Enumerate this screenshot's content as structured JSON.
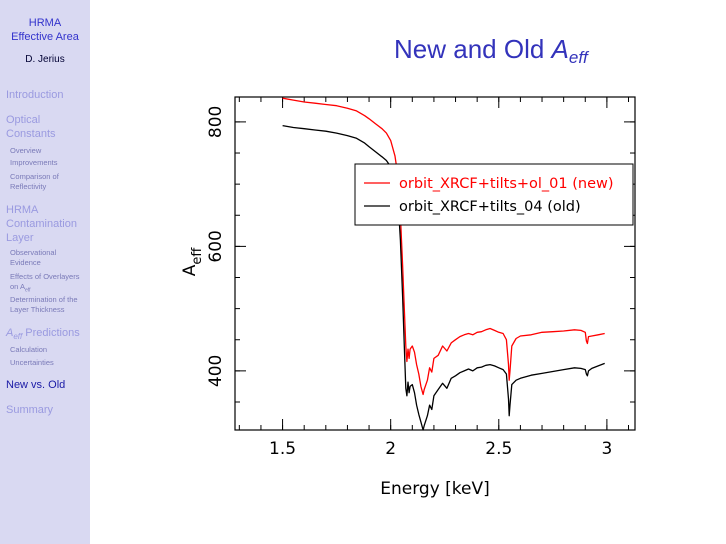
{
  "sidebar": {
    "title_line1": "HRMA",
    "title_line2": "Effective Area",
    "author": "D. Jerius",
    "sections": [
      {
        "label": "Introduction"
      },
      {
        "label_lines": [
          "Optical",
          "Constants"
        ],
        "items": [
          [
            "Overview"
          ],
          [
            "Improvements"
          ],
          [
            "Comparison of",
            "Reflectivity"
          ]
        ]
      },
      {
        "label_lines": [
          "HRMA",
          "Contamination",
          "Layer"
        ],
        "items": [
          [
            "Observational",
            "Evidence"
          ],
          [
            "Effects of Overlayers",
            "on A",
            "eff"
          ],
          [
            "Determination of the",
            "Layer Thickness"
          ]
        ]
      },
      {
        "label_a": "A",
        "label_sub": "eff",
        "label_rest": " Predictions",
        "items": [
          [
            "Calculation"
          ],
          [
            "Uncertainties"
          ]
        ]
      },
      {
        "label": "New vs. Old"
      },
      {
        "label": "Summary"
      }
    ]
  },
  "slide": {
    "title_main": "New and Old ",
    "title_a": "A",
    "title_sub": "eff"
  },
  "chart_data": {
    "type": "line",
    "title": "",
    "xlabel": "Energy [keV]",
    "ylabel_main": "A",
    "ylabel_sub": "eff",
    "xlim": [
      1.28,
      3.13
    ],
    "ylim": [
      305,
      840
    ],
    "xticks": [
      1.5,
      2,
      2.5,
      3
    ],
    "xtick_labels": [
      "1.5",
      "2",
      "2.5",
      "3"
    ],
    "yticks": [
      400,
      600,
      800
    ],
    "ytick_labels": [
      "400",
      "600",
      "800"
    ],
    "legend": {
      "placement": "top-right"
    },
    "series": [
      {
        "name": "orbit_XRCF+tilts+ol_01 (new)",
        "color": "#ff0000",
        "points": [
          [
            1.5,
            838
          ],
          [
            1.55,
            835
          ],
          [
            1.6,
            832
          ],
          [
            1.65,
            830
          ],
          [
            1.7,
            828
          ],
          [
            1.75,
            826
          ],
          [
            1.8,
            822
          ],
          [
            1.84,
            818
          ],
          [
            1.88,
            810
          ],
          [
            1.9,
            805
          ],
          [
            1.93,
            797
          ],
          [
            1.96,
            789
          ],
          [
            1.98,
            782
          ],
          [
            2.0,
            770
          ],
          [
            2.02,
            745
          ],
          [
            2.035,
            710
          ],
          [
            2.045,
            650
          ],
          [
            2.055,
            570
          ],
          [
            2.063,
            500
          ],
          [
            2.07,
            440
          ],
          [
            2.075,
            415
          ],
          [
            2.08,
            435
          ],
          [
            2.085,
            420
          ],
          [
            2.09,
            435
          ],
          [
            2.1,
            440
          ],
          [
            2.11,
            430
          ],
          [
            2.12,
            410
          ],
          [
            2.13,
            395
          ],
          [
            2.14,
            375
          ],
          [
            2.15,
            362
          ],
          [
            2.155,
            370
          ],
          [
            2.17,
            385
          ],
          [
            2.18,
            405
          ],
          [
            2.19,
            398
          ],
          [
            2.2,
            420
          ],
          [
            2.22,
            425
          ],
          [
            2.24,
            440
          ],
          [
            2.26,
            432
          ],
          [
            2.28,
            445
          ],
          [
            2.3,
            450
          ],
          [
            2.32,
            455
          ],
          [
            2.34,
            458
          ],
          [
            2.36,
            460
          ],
          [
            2.38,
            458
          ],
          [
            2.4,
            462
          ],
          [
            2.42,
            463
          ],
          [
            2.44,
            466
          ],
          [
            2.46,
            468
          ],
          [
            2.48,
            465
          ],
          [
            2.5,
            462
          ],
          [
            2.52,
            460
          ],
          [
            2.535,
            450
          ],
          [
            2.545,
            410
          ],
          [
            2.548,
            385
          ],
          [
            2.552,
            400
          ],
          [
            2.56,
            440
          ],
          [
            2.58,
            452
          ],
          [
            2.6,
            456
          ],
          [
            2.65,
            458
          ],
          [
            2.7,
            462
          ],
          [
            2.75,
            463
          ],
          [
            2.8,
            464
          ],
          [
            2.85,
            466
          ],
          [
            2.88,
            465
          ],
          [
            2.9,
            462
          ],
          [
            2.905,
            448
          ],
          [
            2.91,
            444
          ],
          [
            2.915,
            455
          ],
          [
            2.93,
            456
          ],
          [
            2.96,
            458
          ],
          [
            2.99,
            460
          ]
        ]
      },
      {
        "name": "orbit_XRCF+tilts_04 (old)",
        "color": "#000000",
        "points": [
          [
            1.5,
            794
          ],
          [
            1.55,
            791
          ],
          [
            1.6,
            789
          ],
          [
            1.65,
            787
          ],
          [
            1.7,
            785
          ],
          [
            1.75,
            782
          ],
          [
            1.8,
            778
          ],
          [
            1.84,
            774
          ],
          [
            1.88,
            766
          ],
          [
            1.9,
            760
          ],
          [
            1.93,
            752
          ],
          [
            1.96,
            744
          ],
          [
            1.98,
            738
          ],
          [
            2.0,
            728
          ],
          [
            2.02,
            705
          ],
          [
            2.035,
            670
          ],
          [
            2.045,
            610
          ],
          [
            2.055,
            520
          ],
          [
            2.063,
            440
          ],
          [
            2.07,
            372
          ],
          [
            2.075,
            360
          ],
          [
            2.08,
            382
          ],
          [
            2.085,
            365
          ],
          [
            2.09,
            375
          ],
          [
            2.1,
            378
          ],
          [
            2.11,
            365
          ],
          [
            2.12,
            345
          ],
          [
            2.13,
            330
          ],
          [
            2.14,
            318
          ],
          [
            2.15,
            305
          ],
          [
            2.155,
            312
          ],
          [
            2.17,
            328
          ],
          [
            2.18,
            345
          ],
          [
            2.19,
            338
          ],
          [
            2.2,
            360
          ],
          [
            2.22,
            370
          ],
          [
            2.24,
            380
          ],
          [
            2.26,
            372
          ],
          [
            2.28,
            388
          ],
          [
            2.3,
            392
          ],
          [
            2.32,
            397
          ],
          [
            2.34,
            400
          ],
          [
            2.36,
            403
          ],
          [
            2.38,
            400
          ],
          [
            2.4,
            405
          ],
          [
            2.42,
            406
          ],
          [
            2.44,
            409
          ],
          [
            2.46,
            410
          ],
          [
            2.48,
            408
          ],
          [
            2.5,
            405
          ],
          [
            2.52,
            402
          ],
          [
            2.535,
            395
          ],
          [
            2.545,
            355
          ],
          [
            2.548,
            328
          ],
          [
            2.552,
            345
          ],
          [
            2.56,
            378
          ],
          [
            2.58,
            385
          ],
          [
            2.6,
            388
          ],
          [
            2.65,
            393
          ],
          [
            2.7,
            396
          ],
          [
            2.75,
            399
          ],
          [
            2.8,
            402
          ],
          [
            2.85,
            405
          ],
          [
            2.88,
            404
          ],
          [
            2.9,
            402
          ],
          [
            2.905,
            395
          ],
          [
            2.91,
            392
          ],
          [
            2.915,
            400
          ],
          [
            2.93,
            404
          ],
          [
            2.96,
            408
          ],
          [
            2.99,
            412
          ]
        ]
      }
    ]
  }
}
